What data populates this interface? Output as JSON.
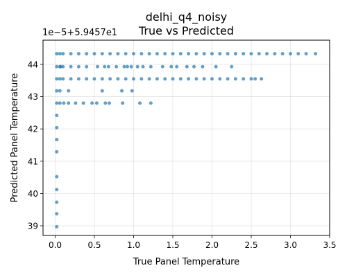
{
  "chart_data": {
    "type": "scatter",
    "title": "delhi_q4_noisy",
    "subtitle": "True vs Predicted",
    "xlabel": "True Panel Temperature",
    "ylabel": "Predicted Panel Temperature",
    "y_offset_label": "1e−5+5.9457e1",
    "xlim": [
      -0.155,
      3.5
    ],
    "ylim": [
      38.7,
      44.75
    ],
    "x_ticks": [
      0.0,
      0.5,
      1.0,
      1.5,
      2.0,
      2.5,
      3.0,
      3.5
    ],
    "x_tick_labels": [
      "0.0",
      "0.5",
      "1.0",
      "1.5",
      "2.0",
      "2.5",
      "3.0",
      "3.5"
    ],
    "y_ticks": [
      39,
      40,
      41,
      42,
      43,
      44
    ],
    "y_tick_labels": [
      "39",
      "40",
      "41",
      "42",
      "43",
      "44"
    ],
    "grid": true,
    "marker_color": "#1f77b4",
    "series": [
      {
        "name": "",
        "points": [
          [
            0.02,
            38.97
          ],
          [
            0.02,
            39.37
          ],
          [
            0.02,
            39.73
          ],
          [
            0.02,
            40.12
          ],
          [
            0.02,
            40.52
          ],
          [
            0.02,
            41.29
          ],
          [
            0.02,
            41.67
          ],
          [
            0.02,
            42.04
          ],
          [
            0.02,
            42.42
          ],
          [
            0.02,
            42.8
          ],
          [
            0.02,
            43.18
          ],
          [
            0.02,
            43.55
          ],
          [
            0.02,
            43.93
          ],
          [
            0.02,
            44.33
          ],
          [
            0.06,
            42.8
          ],
          [
            0.06,
            43.18
          ],
          [
            0.06,
            43.55
          ],
          [
            0.06,
            43.93
          ],
          [
            0.06,
            44.33
          ],
          [
            0.11,
            42.8
          ],
          [
            0.17,
            42.8
          ],
          [
            0.26,
            42.8
          ],
          [
            0.36,
            42.8
          ],
          [
            0.47,
            42.8
          ],
          [
            0.53,
            42.8
          ],
          [
            0.64,
            42.8
          ],
          [
            0.69,
            42.8
          ],
          [
            0.86,
            42.8
          ],
          [
            1.08,
            42.8
          ],
          [
            1.22,
            42.8
          ],
          [
            0.17,
            43.18
          ],
          [
            0.6,
            43.18
          ],
          [
            0.85,
            43.18
          ],
          [
            0.98,
            43.18
          ],
          [
            0.07,
            43.93
          ],
          [
            0.1,
            43.93
          ],
          [
            0.2,
            43.93
          ],
          [
            0.3,
            43.93
          ],
          [
            0.4,
            43.93
          ],
          [
            0.54,
            43.93
          ],
          [
            0.63,
            43.93
          ],
          [
            0.68,
            43.93
          ],
          [
            0.78,
            43.93
          ],
          [
            0.88,
            43.93
          ],
          [
            0.92,
            43.93
          ],
          [
            0.97,
            43.93
          ],
          [
            1.05,
            43.93
          ],
          [
            1.12,
            43.93
          ],
          [
            1.22,
            43.93
          ],
          [
            1.37,
            43.93
          ],
          [
            1.48,
            43.93
          ],
          [
            1.55,
            43.93
          ],
          [
            1.68,
            43.93
          ],
          [
            1.77,
            43.93
          ],
          [
            1.88,
            43.93
          ],
          [
            2.05,
            43.93
          ],
          [
            2.25,
            43.93
          ],
          [
            0.1,
            43.55
          ],
          [
            0.2,
            43.55
          ],
          [
            0.3,
            43.55
          ],
          [
            0.4,
            43.55
          ],
          [
            0.5,
            43.55
          ],
          [
            0.6,
            43.55
          ],
          [
            0.7,
            43.55
          ],
          [
            0.8,
            43.55
          ],
          [
            0.9,
            43.55
          ],
          [
            1.0,
            43.55
          ],
          [
            1.1,
            43.55
          ],
          [
            1.2,
            43.55
          ],
          [
            1.3,
            43.55
          ],
          [
            1.4,
            43.55
          ],
          [
            1.5,
            43.55
          ],
          [
            1.6,
            43.55
          ],
          [
            1.7,
            43.55
          ],
          [
            1.8,
            43.55
          ],
          [
            1.9,
            43.55
          ],
          [
            2.0,
            43.55
          ],
          [
            2.1,
            43.55
          ],
          [
            2.2,
            43.55
          ],
          [
            2.3,
            43.55
          ],
          [
            2.4,
            43.55
          ],
          [
            2.5,
            43.55
          ],
          [
            2.55,
            43.55
          ],
          [
            2.63,
            43.55
          ],
          [
            0.1,
            44.33
          ],
          [
            0.2,
            44.33
          ],
          [
            0.3,
            44.33
          ],
          [
            0.4,
            44.33
          ],
          [
            0.5,
            44.33
          ],
          [
            0.6,
            44.33
          ],
          [
            0.7,
            44.33
          ],
          [
            0.8,
            44.33
          ],
          [
            0.9,
            44.33
          ],
          [
            1.0,
            44.33
          ],
          [
            1.1,
            44.33
          ],
          [
            1.2,
            44.33
          ],
          [
            1.3,
            44.33
          ],
          [
            1.4,
            44.33
          ],
          [
            1.5,
            44.33
          ],
          [
            1.6,
            44.33
          ],
          [
            1.7,
            44.33
          ],
          [
            1.8,
            44.33
          ],
          [
            1.9,
            44.33
          ],
          [
            2.0,
            44.33
          ],
          [
            2.1,
            44.33
          ],
          [
            2.2,
            44.33
          ],
          [
            2.3,
            44.33
          ],
          [
            2.4,
            44.33
          ],
          [
            2.5,
            44.33
          ],
          [
            2.6,
            44.33
          ],
          [
            2.7,
            44.33
          ],
          [
            2.8,
            44.33
          ],
          [
            2.9,
            44.33
          ],
          [
            3.0,
            44.33
          ],
          [
            3.1,
            44.33
          ],
          [
            3.2,
            44.33
          ],
          [
            3.32,
            44.33
          ]
        ]
      }
    ]
  }
}
